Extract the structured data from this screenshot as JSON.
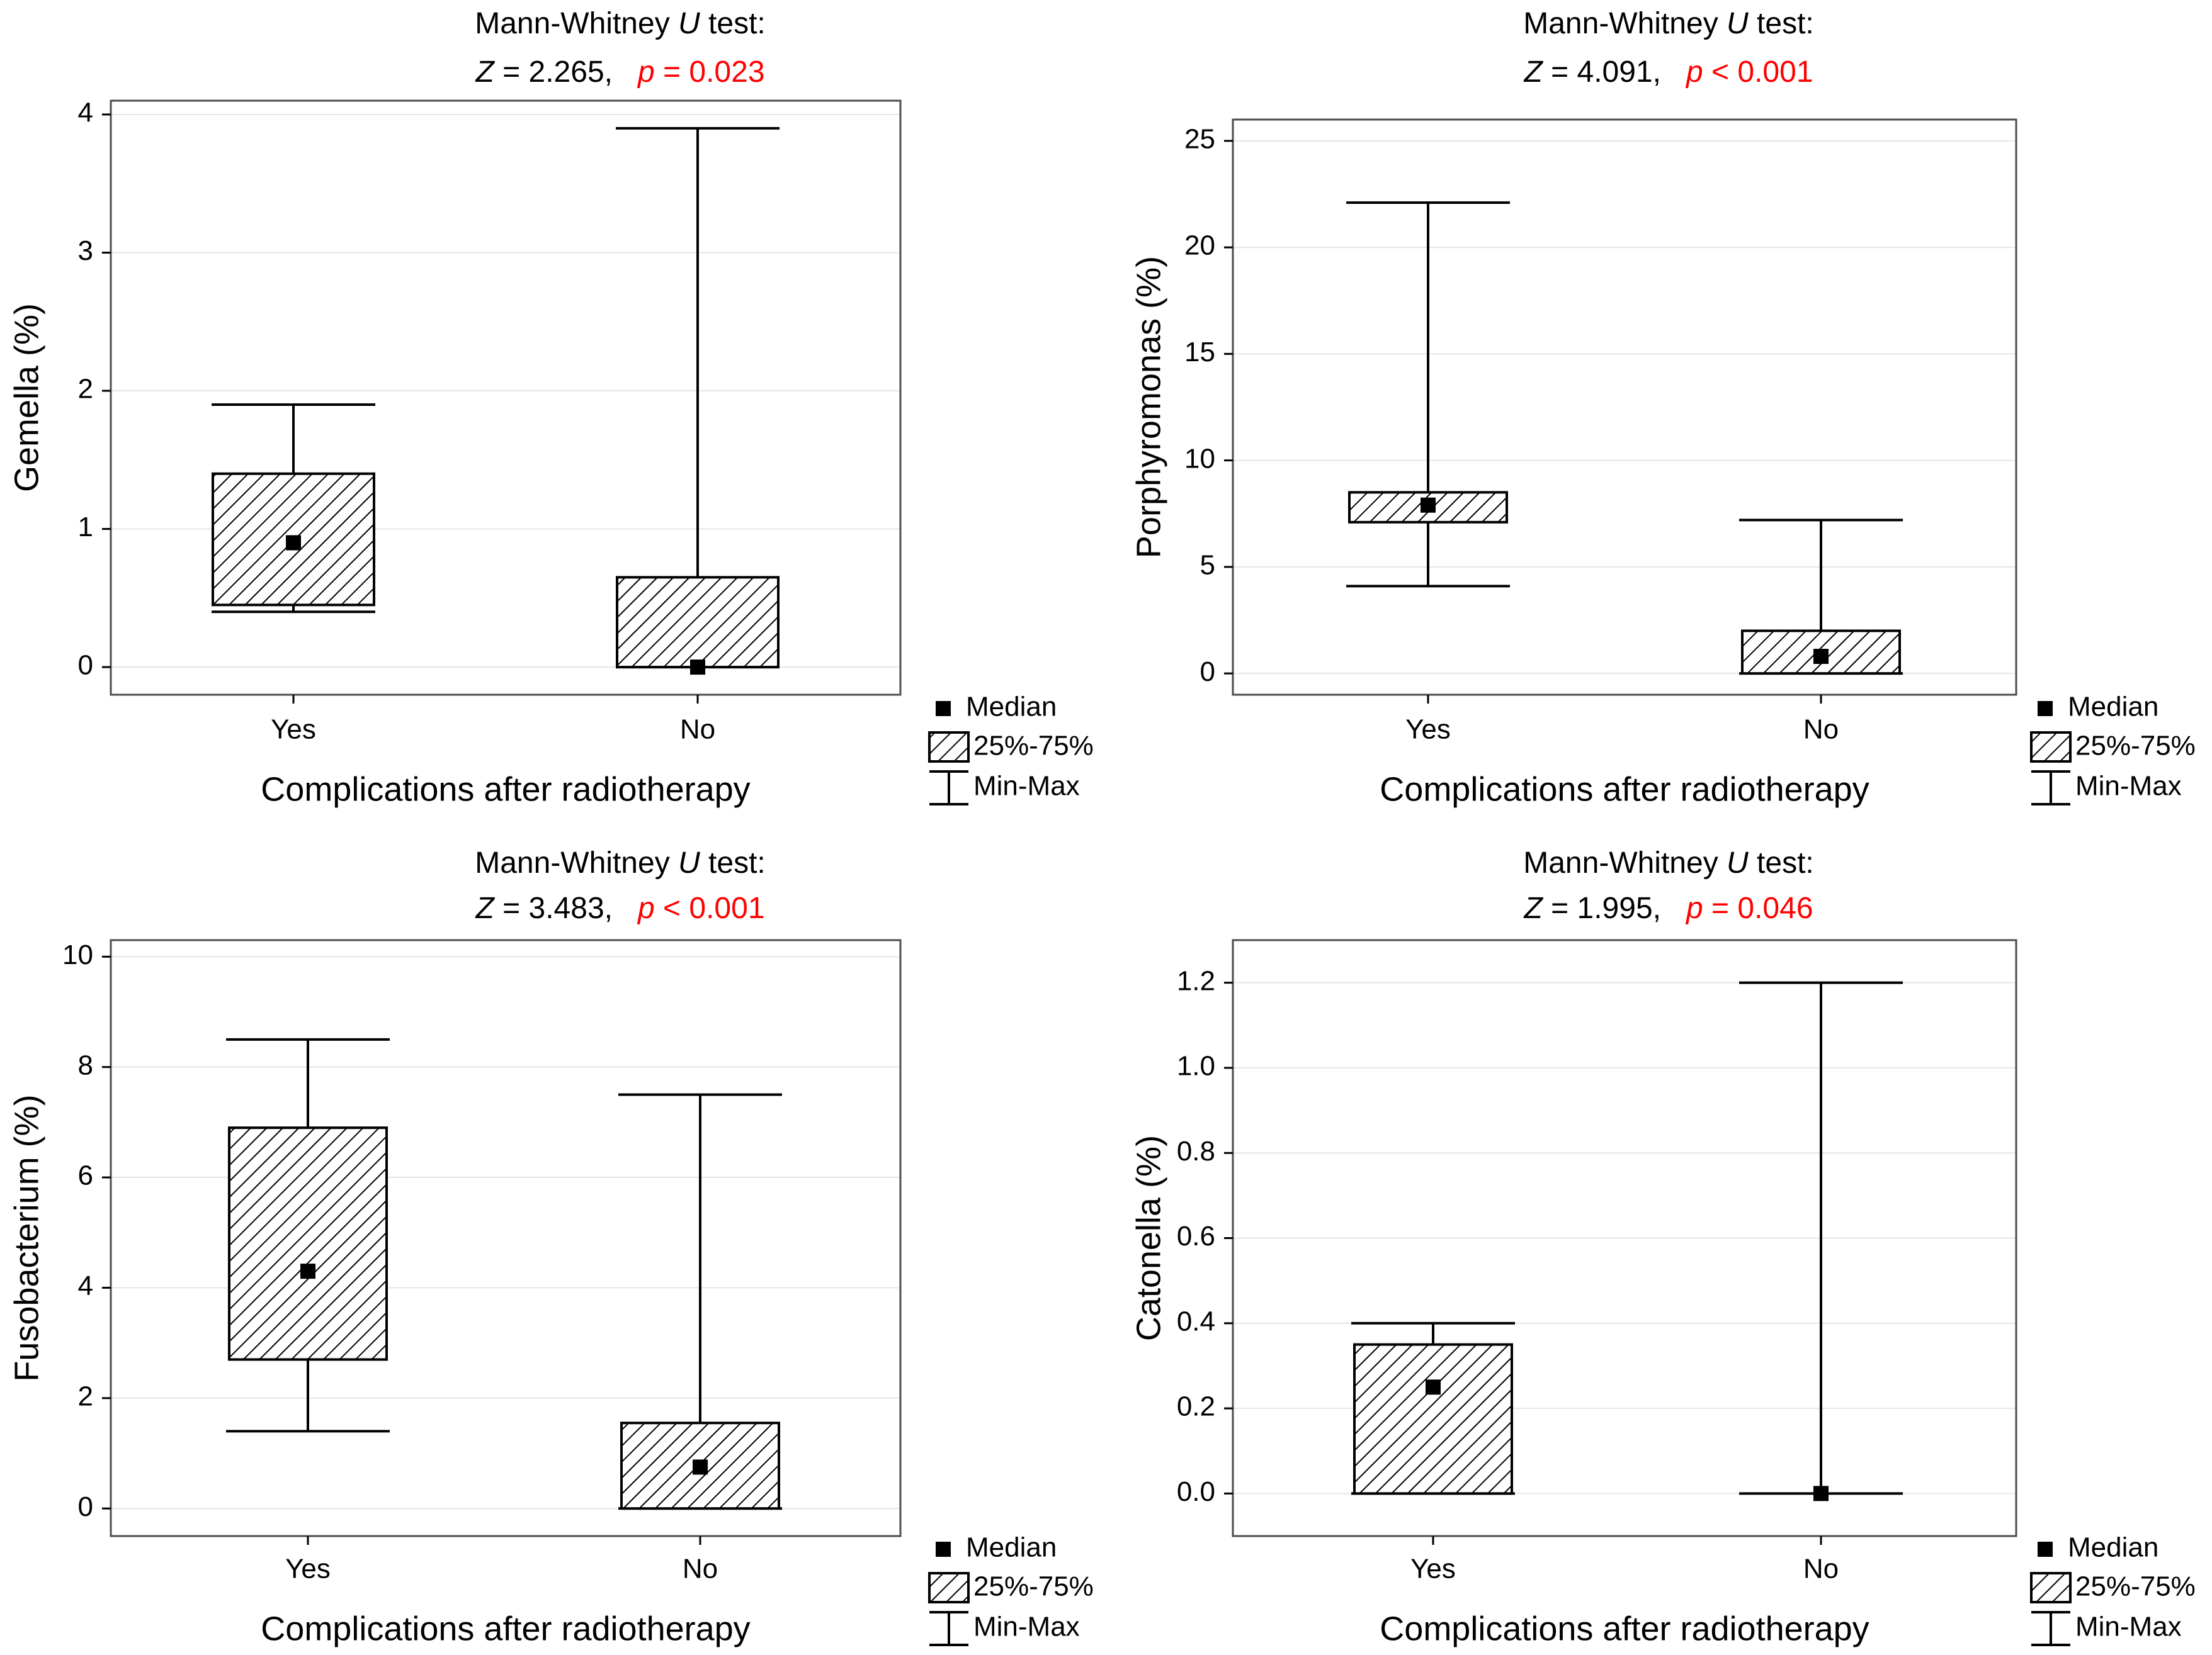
{
  "colors": {
    "significant": "#ff0000",
    "text": "#000000",
    "grid": "#e6e6e6",
    "frame": "#4d4d4d",
    "box_fill": "#ffffff"
  },
  "legend": {
    "median": "Median",
    "iqr": "25%-75%",
    "range": "Min-Max"
  },
  "chart_data": [
    {
      "type": "box",
      "test_label_prefix": "Mann-Whitney ",
      "test_label_italic": "U",
      "test_label_suffix": " test:",
      "z_symbol": "Z",
      "z_text": " = 2.265,",
      "p_symbol": "p",
      "p_text": " = 0.023",
      "xlabel": "Complications after radiotherapy",
      "ylabel": "Gemella (%)",
      "ylim": [
        -0.2,
        4.1
      ],
      "yticks": [
        0,
        1,
        2,
        3,
        4
      ],
      "ytick_labels": [
        "0",
        "1",
        "2",
        "3",
        "4"
      ],
      "categories": [
        "Yes",
        "No"
      ],
      "series": [
        {
          "name": "Yes",
          "min": 0.4,
          "q1": 0.45,
          "median": 0.9,
          "q3": 1.4,
          "max": 1.9
        },
        {
          "name": "No",
          "min": 0.0,
          "q1": 0.0,
          "median": 0.0,
          "q3": 0.65,
          "max": 3.9
        }
      ]
    },
    {
      "type": "box",
      "test_label_prefix": "Mann-Whitney ",
      "test_label_italic": "U",
      "test_label_suffix": " test:",
      "z_symbol": "Z",
      "z_text": " = 4.091,",
      "p_symbol": "p",
      "p_text": " < 0.001",
      "xlabel": "Complications after radiotherapy",
      "ylabel": "Porphyromonas (%)",
      "ylim": [
        -1,
        26
      ],
      "yticks": [
        0,
        5,
        10,
        15,
        20,
        25
      ],
      "ytick_labels": [
        "0",
        "5",
        "10",
        "15",
        "20",
        "25"
      ],
      "categories": [
        "Yes",
        "No"
      ],
      "series": [
        {
          "name": "Yes",
          "min": 4.1,
          "q1": 7.1,
          "median": 7.9,
          "q3": 8.5,
          "max": 22.1
        },
        {
          "name": "No",
          "min": 0.0,
          "q1": 0.0,
          "median": 0.8,
          "q3": 2.0,
          "max": 7.2
        }
      ]
    },
    {
      "type": "box",
      "test_label_prefix": "Mann-Whitney ",
      "test_label_italic": "U",
      "test_label_suffix": " test:",
      "z_symbol": "Z",
      "z_text": " = 3.483,",
      "p_symbol": "p",
      "p_text": " < 0.001",
      "xlabel": "Complications after radiotherapy",
      "ylabel": "Fusobacterium (%)",
      "ylim": [
        -0.5,
        10.3
      ],
      "yticks": [
        0,
        2,
        4,
        6,
        8,
        10
      ],
      "ytick_labels": [
        "0",
        "2",
        "4",
        "6",
        "8",
        "10"
      ],
      "categories": [
        "Yes",
        "No"
      ],
      "series": [
        {
          "name": "Yes",
          "min": 1.4,
          "q1": 2.7,
          "median": 4.3,
          "q3": 6.9,
          "max": 8.5
        },
        {
          "name": "No",
          "min": 0.0,
          "q1": 0.0,
          "median": 0.75,
          "q3": 1.55,
          "max": 7.5
        }
      ]
    },
    {
      "type": "box",
      "test_label_prefix": "Mann-Whitney ",
      "test_label_italic": "U",
      "test_label_suffix": " test:",
      "z_symbol": "Z",
      "z_text": " = 1.995,",
      "p_symbol": "p",
      "p_text": " = 0.046",
      "xlabel": "Complications after radiotherapy",
      "ylabel": "Catonella (%)",
      "ylim": [
        -0.1,
        1.3
      ],
      "yticks": [
        0.0,
        0.2,
        0.4,
        0.6,
        0.8,
        1.0,
        1.2
      ],
      "ytick_labels": [
        "0.0",
        "0.2",
        "0.4",
        "0.6",
        "0.8",
        "1.0",
        "1.2"
      ],
      "categories": [
        "Yes",
        "No"
      ],
      "series": [
        {
          "name": "Yes",
          "min": 0.0,
          "q1": 0.0,
          "median": 0.25,
          "q3": 0.35,
          "max": 0.4
        },
        {
          "name": "No",
          "min": 0.0,
          "q1": 0.0,
          "median": 0.0,
          "q3": 0.0,
          "max": 1.2
        }
      ]
    }
  ]
}
